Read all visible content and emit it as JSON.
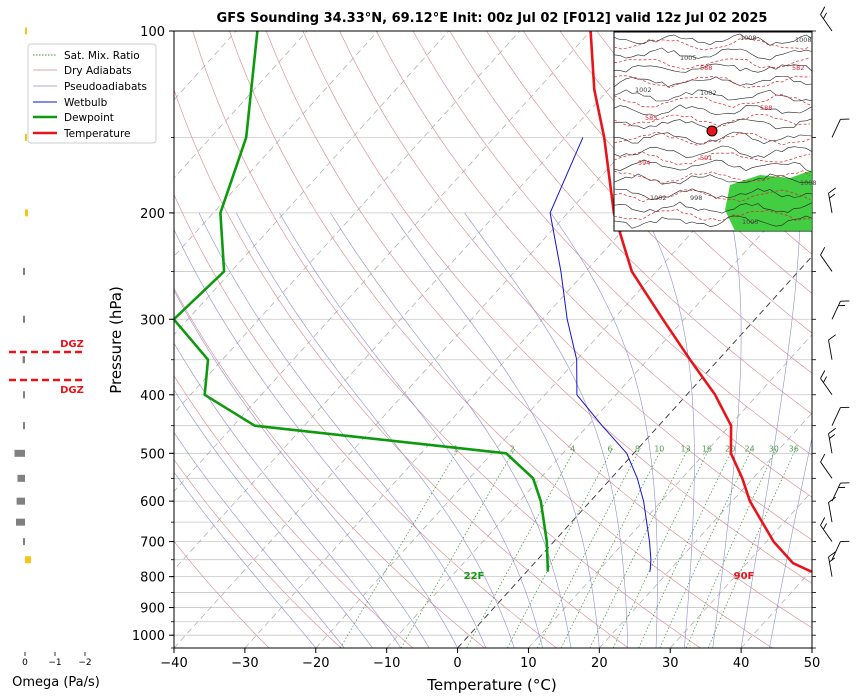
{
  "chart_data": {
    "type": "line",
    "title": "GFS Sounding 34.33°N, 69.12°E Init: 00z Jul 02 [F012] valid 12z Jul 02 2025",
    "xlabel": "Temperature (°C)",
    "ylabel": "Pressure (hPa)",
    "xlim": [
      -40,
      50
    ],
    "ylim": [
      1050,
      100
    ],
    "y_scale": "log",
    "skew": true,
    "grid": true,
    "x_ticks": [
      "−40",
      "−30",
      "−20",
      "−10",
      "0",
      "10",
      "20",
      "30",
      "40",
      "50"
    ],
    "y_ticks": [
      "100",
      "200",
      "300",
      "400",
      "500",
      "600",
      "700",
      "800",
      "900",
      "1000"
    ],
    "legend_position": "top-left",
    "legend": [
      "Sat. Mix. Ratio",
      "Dry Adiabats",
      "Pseudoadiabats",
      "Wetbulb",
      "Dewpoint",
      "Temperature"
    ],
    "colors": {
      "temperature": "#e8141a",
      "dewpoint": "#0e9a0e",
      "wetbulb": "#1212d8",
      "dry_adiabats": "#d9868c",
      "pseudoadiabats": "#8f8fd0",
      "mixing_ratio": "#3a8f3a",
      "isotherm": "#b0b0b0",
      "dgz": "#e8141a",
      "omega_down": "#808080",
      "omega_up": "#f5c518"
    },
    "series": [
      {
        "name": "Temperature",
        "points": [
          {
            "p": 785,
            "t": 40.2
          },
          {
            "p": 760,
            "t": 36.5
          },
          {
            "p": 700,
            "t": 31.0
          },
          {
            "p": 600,
            "t": 22.5
          },
          {
            "p": 550,
            "t": 18.5
          },
          {
            "p": 500,
            "t": 13.7
          },
          {
            "p": 450,
            "t": 10.2
          },
          {
            "p": 400,
            "t": 4.0
          },
          {
            "p": 350,
            "t": -4.0
          },
          {
            "p": 300,
            "t": -13.0
          },
          {
            "p": 250,
            "t": -23.5
          },
          {
            "p": 200,
            "t": -33.5
          },
          {
            "p": 150,
            "t": -44.5
          },
          {
            "p": 125,
            "t": -52.0
          },
          {
            "p": 100,
            "t": -60.0
          }
        ]
      },
      {
        "name": "Dewpoint",
        "points": [
          {
            "p": 785,
            "t": 3.0
          },
          {
            "p": 700,
            "t": -1.0
          },
          {
            "p": 600,
            "t": -7.0
          },
          {
            "p": 550,
            "t": -11.0
          },
          {
            "p": 500,
            "t": -18.0
          },
          {
            "p": 450,
            "t": -57.0
          },
          {
            "p": 400,
            "t": -68.0
          },
          {
            "p": 350,
            "t": -72.0
          },
          {
            "p": 300,
            "t": -82.0
          },
          {
            "p": 250,
            "t": -81.0
          },
          {
            "p": 200,
            "t": -89.0
          },
          {
            "p": 150,
            "t": -95.0
          },
          {
            "p": 100,
            "t": -107.0
          }
        ]
      },
      {
        "name": "Wetbulb",
        "points": [
          {
            "p": 785,
            "t": 17.4
          },
          {
            "p": 750,
            "t": 16.0
          },
          {
            "p": 700,
            "t": 13.5
          },
          {
            "p": 600,
            "t": 7.5
          },
          {
            "p": 550,
            "t": 3.7
          },
          {
            "p": 500,
            "t": -1.0
          },
          {
            "p": 450,
            "t": -8.0
          },
          {
            "p": 400,
            "t": -15.5
          },
          {
            "p": 350,
            "t": -20.0
          },
          {
            "p": 300,
            "t": -26.5
          },
          {
            "p": 250,
            "t": -33.5
          },
          {
            "p": 200,
            "t": -42.5
          },
          {
            "p": 150,
            "t": -47.5
          }
        ]
      }
    ],
    "annotations": {
      "surface_temp": "90F",
      "surface_dewpoint": "22F",
      "mixing_ratio_labels": [
        "1",
        "2",
        "4",
        "6",
        "8",
        "10",
        "13",
        "16",
        "20",
        "24",
        "30",
        "36"
      ],
      "mixing_ratio_values": [
        1,
        2,
        4,
        6,
        8,
        10,
        13,
        16,
        20,
        24,
        30,
        36
      ]
    },
    "omega": {
      "xlabel": "Omega (Pa/s)",
      "ticks": [
        "0",
        "−1",
        "−2"
      ],
      "dgz_label": "DGZ",
      "dgz_levels": [
        340,
        377
      ],
      "bars": [
        {
          "p": 100,
          "v": -0.05
        },
        {
          "p": 150,
          "v": -0.05
        },
        {
          "p": 200,
          "v": -0.1
        },
        {
          "p": 250,
          "v": 0.05
        },
        {
          "p": 300,
          "v": 0.05
        },
        {
          "p": 350,
          "v": 0.08
        },
        {
          "p": 400,
          "v": 0.05
        },
        {
          "p": 450,
          "v": 0.06
        },
        {
          "p": 500,
          "v": 0.35
        },
        {
          "p": 550,
          "v": 0.25
        },
        {
          "p": 600,
          "v": 0.28
        },
        {
          "p": 650,
          "v": 0.3
        },
        {
          "p": 700,
          "v": 0.05
        },
        {
          "p": 750,
          "v": -0.2
        }
      ]
    },
    "wind_barb_levels": [
      100,
      150,
      200,
      250,
      300,
      350,
      400,
      450,
      500,
      550,
      600,
      650,
      700,
      750,
      800
    ],
    "inset_map": {
      "type": "map",
      "contour_labels": [
        "1008",
        "1002",
        "1002",
        "1002",
        "1008",
        "1005",
        "588",
        "582",
        "585",
        "594",
        "591",
        "1008",
        "998",
        "1005",
        "588"
      ]
    }
  }
}
